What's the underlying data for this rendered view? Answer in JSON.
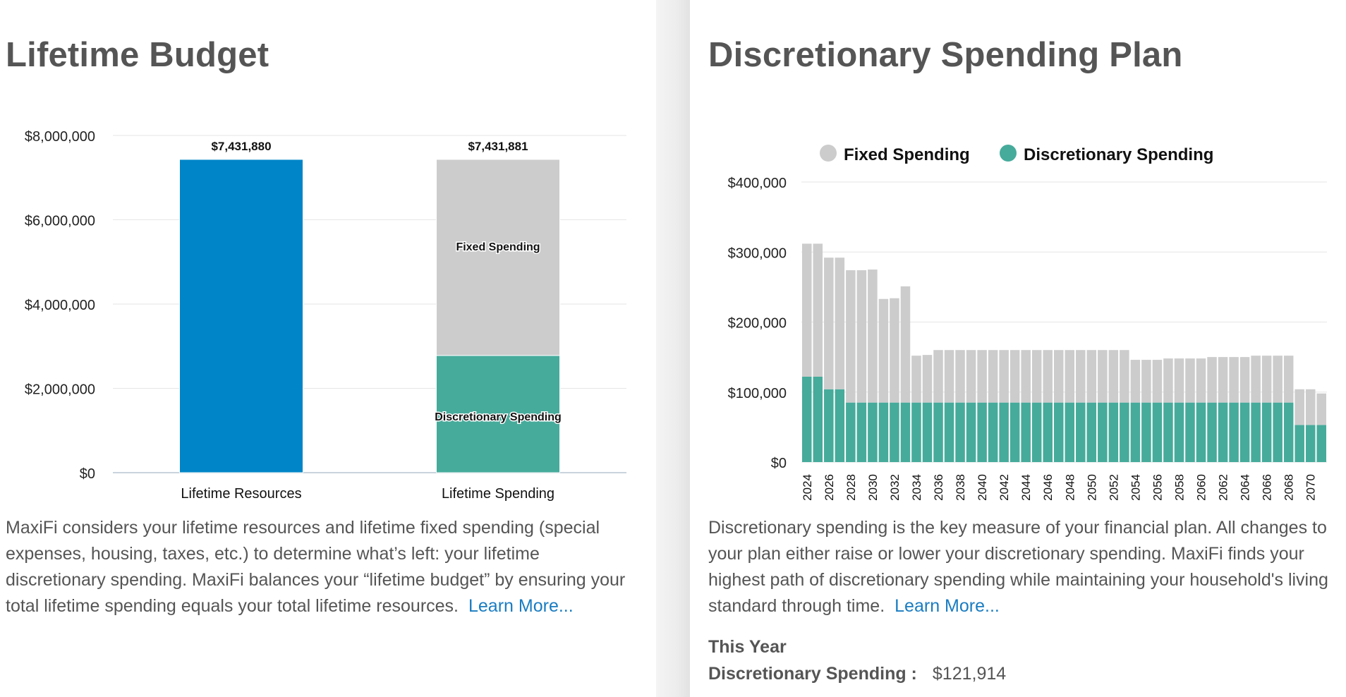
{
  "lifetime_budget": {
    "title": "Lifetime Budget",
    "description": "MaxiFi considers your lifetime resources and lifetime fixed spending (special expenses, housing, taxes, etc.) to determine what’s left: your lifetime discretionary spending. MaxiFi balances your “lifetime budget” by ensuring your total lifetime spending equals your total lifetime resources.",
    "learn_more": "Learn More..."
  },
  "discretionary_plan": {
    "title": "Discretionary Spending Plan",
    "description": "Discretionary spending is the key measure of your financial plan. All changes to your plan either raise or lower your discretionary spending. MaxiFi finds your highest path of discretionary spending while maintaining your household's living standard through time.",
    "learn_more": "Learn More...",
    "this_year_label": "This Year",
    "ds_label": "Discretionary Spending :",
    "ds_value": "$121,914"
  },
  "colors": {
    "blue": "#0085c8",
    "fixed": "#cccccc",
    "discretionary": "#46ab9b",
    "link": "#1a7cc1"
  },
  "chart_data": [
    {
      "type": "bar",
      "stacked": true,
      "title": "Lifetime Budget",
      "categories": [
        "Lifetime Resources",
        "Lifetime Spending"
      ],
      "series": [
        {
          "name": "Lifetime Resources",
          "values": [
            7431880,
            0
          ],
          "color": "#0085c8"
        },
        {
          "name": "Discretionary Spending",
          "values": [
            0,
            2780000
          ],
          "color": "#46ab9b"
        },
        {
          "name": "Fixed Spending",
          "values": [
            0,
            4651881
          ],
          "color": "#cccccc"
        }
      ],
      "totals": [
        7431880,
        7431881
      ],
      "total_labels": [
        "$7,431,880",
        "$7,431,881"
      ],
      "segment_labels": [
        "Fixed Spending",
        "Discretionary Spending"
      ],
      "yticks": [
        0,
        2000000,
        4000000,
        6000000,
        8000000
      ],
      "ytick_labels": [
        "$0",
        "$2,000,000",
        "$4,000,000",
        "$6,000,000",
        "$8,000,000"
      ],
      "ylim": [
        0,
        8000000
      ],
      "grid": true
    },
    {
      "type": "bar",
      "stacked": true,
      "title": "Discretionary Spending Plan",
      "legend": [
        "Fixed Spending",
        "Discretionary Spending"
      ],
      "legend_position": "top",
      "x": [
        2024,
        2025,
        2026,
        2027,
        2028,
        2029,
        2030,
        2031,
        2032,
        2033,
        2034,
        2035,
        2036,
        2037,
        2038,
        2039,
        2040,
        2041,
        2042,
        2043,
        2044,
        2045,
        2046,
        2047,
        2048,
        2049,
        2050,
        2051,
        2052,
        2053,
        2054,
        2055,
        2056,
        2057,
        2058,
        2059,
        2060,
        2061,
        2062,
        2063,
        2064,
        2065,
        2066,
        2067,
        2068,
        2069,
        2070,
        2071
      ],
      "xtick_labels": [
        "2024",
        "2026",
        "2028",
        "2030",
        "2032",
        "2034",
        "2036",
        "2038",
        "2040",
        "2042",
        "2044",
        "2046",
        "2048",
        "2050",
        "2052",
        "2054",
        "2056",
        "2058",
        "2060",
        "2062",
        "2064",
        "2066",
        "2068",
        "2070"
      ],
      "series": [
        {
          "name": "Discretionary Spending",
          "color": "#46ab9b",
          "values": [
            121914,
            121914,
            104000,
            104000,
            85000,
            85000,
            85000,
            85000,
            85000,
            85000,
            85000,
            85000,
            85000,
            85000,
            85000,
            85000,
            85000,
            85000,
            85000,
            85000,
            85000,
            85000,
            85000,
            85000,
            85000,
            85000,
            85000,
            85000,
            85000,
            85000,
            85000,
            85000,
            85000,
            85000,
            85000,
            85000,
            85000,
            85000,
            85000,
            85000,
            85000,
            85000,
            85000,
            85000,
            85000,
            53000,
            53000,
            53000
          ]
        },
        {
          "name": "Fixed Spending",
          "color": "#cccccc",
          "values": [
            190000,
            190000,
            188000,
            188000,
            189000,
            189000,
            190000,
            148000,
            149000,
            166000,
            67000,
            68000,
            75000,
            75000,
            75000,
            75000,
            75000,
            75000,
            75000,
            75000,
            75000,
            75000,
            75000,
            75000,
            75000,
            75000,
            75000,
            75000,
            75000,
            75000,
            61000,
            61000,
            61000,
            63000,
            63000,
            63000,
            63000,
            65000,
            65000,
            65000,
            65000,
            67000,
            67000,
            67000,
            67000,
            51000,
            51000,
            45000
          ]
        }
      ],
      "yticks": [
        0,
        100000,
        200000,
        300000,
        400000
      ],
      "ytick_labels": [
        "$0",
        "$100,000",
        "$200,000",
        "$300,000",
        "$400,000"
      ],
      "ylim": [
        0,
        400000
      ],
      "grid": true
    }
  ]
}
